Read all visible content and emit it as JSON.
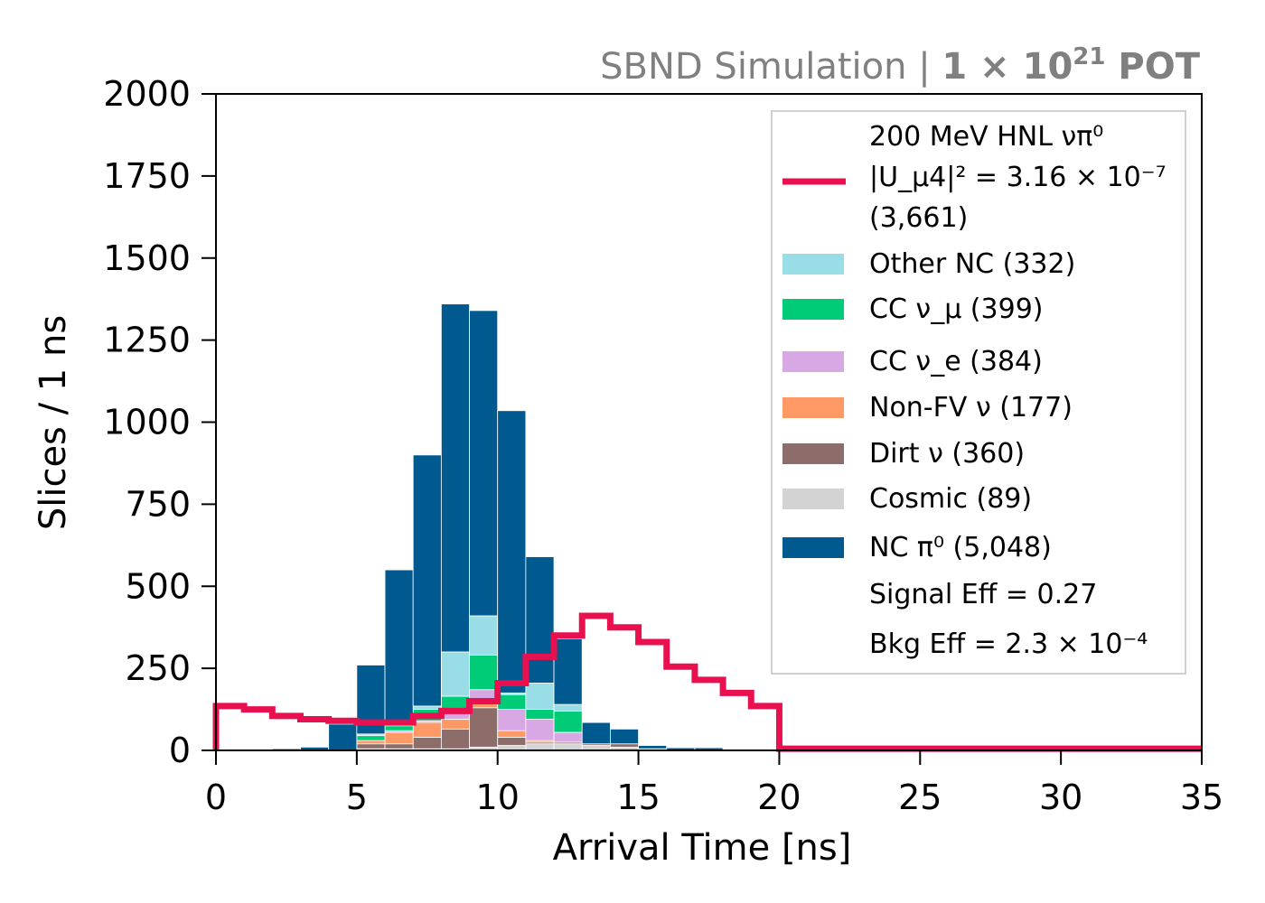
{
  "header": {
    "prefix": "SBND Simulation | ",
    "exposure": "1 × 10",
    "exponent": "21",
    "unit": " POT"
  },
  "chart_data": {
    "type": "bar",
    "stacked": true,
    "xlabel": "Arrival Time [ns]",
    "ylabel": "Slices / 1 ns",
    "xlim": [
      0,
      35
    ],
    "ylim": [
      0,
      2000
    ],
    "xticks": [
      "0",
      "5",
      "10",
      "15",
      "20",
      "25",
      "30",
      "35"
    ],
    "yticks": [
      "0",
      "250",
      "500",
      "750",
      "1000",
      "1250",
      "1500",
      "1750",
      "2000"
    ],
    "bin_edges": [
      0,
      1,
      2,
      3,
      4,
      5,
      6,
      7,
      8,
      9,
      10,
      11,
      12,
      13,
      14,
      15,
      16,
      17,
      18,
      19,
      20,
      21,
      22,
      23,
      24,
      25,
      26,
      27,
      28,
      29,
      30,
      31,
      32,
      33,
      34,
      35
    ],
    "stack_order": [
      "Cosmic",
      "Dirt ν",
      "Non-FV ν",
      "CC ν_e",
      "CC ν_μ",
      "Other NC",
      "NC π⁰"
    ],
    "series": [
      {
        "name": "Cosmic",
        "color": "#d3d3d3",
        "values": [
          0,
          0,
          0,
          0,
          0,
          5,
          5,
          5,
          5,
          10,
          15,
          20,
          20,
          15,
          10,
          5,
          0,
          0,
          0,
          0,
          0,
          0,
          0,
          0,
          0,
          0,
          0,
          0,
          0,
          0,
          0,
          0,
          0,
          0,
          0
        ]
      },
      {
        "name": "Dirt ν",
        "color": "#8c6d6a",
        "values": [
          0,
          0,
          0,
          0,
          0,
          15,
          15,
          35,
          60,
          120,
          25,
          5,
          5,
          5,
          10,
          0,
          0,
          0,
          0,
          0,
          0,
          0,
          0,
          0,
          0,
          0,
          0,
          0,
          0,
          0,
          0,
          0,
          0,
          0,
          0
        ]
      },
      {
        "name": "Non-FV ν",
        "color": "#ff9966",
        "values": [
          0,
          0,
          0,
          0,
          0,
          10,
          35,
          45,
          30,
          25,
          20,
          5,
          0,
          0,
          0,
          0,
          0,
          0,
          0,
          0,
          0,
          0,
          0,
          0,
          0,
          0,
          0,
          0,
          0,
          0,
          0,
          0,
          0,
          0,
          0
        ]
      },
      {
        "name": "CC ν_e",
        "color": "#d8a8e4",
        "values": [
          0,
          0,
          0,
          0,
          0,
          0,
          5,
          5,
          30,
          30,
          65,
          65,
          30,
          0,
          0,
          0,
          0,
          0,
          0,
          0,
          0,
          0,
          0,
          0,
          0,
          0,
          0,
          0,
          0,
          0,
          0,
          0,
          0,
          0,
          0
        ]
      },
      {
        "name": "CC ν_μ",
        "color": "#00cc77",
        "values": [
          0,
          0,
          0,
          0,
          0,
          15,
          15,
          35,
          40,
          105,
          45,
          30,
          65,
          0,
          0,
          0,
          0,
          0,
          0,
          0,
          0,
          0,
          0,
          0,
          0,
          0,
          0,
          0,
          0,
          0,
          0,
          0,
          0,
          0,
          0
        ]
      },
      {
        "name": "Other NC",
        "color": "#99dde6",
        "values": [
          0,
          0,
          0,
          0,
          0,
          5,
          5,
          10,
          135,
          120,
          5,
          80,
          20,
          0,
          0,
          0,
          0,
          0,
          0,
          0,
          0,
          0,
          0,
          0,
          0,
          0,
          0,
          0,
          0,
          0,
          0,
          0,
          0,
          0,
          0
        ]
      },
      {
        "name": "NC π⁰",
        "color": "#005a8f",
        "values": [
          0,
          0,
          5,
          10,
          80,
          210,
          470,
          765,
          1060,
          930,
          860,
          385,
          200,
          65,
          45,
          10,
          8,
          8,
          0,
          0,
          0,
          0,
          0,
          0,
          0,
          0,
          0,
          0,
          0,
          0,
          0,
          0,
          0,
          0,
          0
        ]
      }
    ],
    "signal": {
      "name": "200 MeV HNL νπ⁰",
      "color": "#e8104f",
      "values": [
        135,
        125,
        105,
        95,
        90,
        85,
        85,
        105,
        120,
        150,
        205,
        285,
        350,
        410,
        375,
        330,
        255,
        215,
        175,
        135,
        5,
        5,
        5,
        5,
        5,
        5,
        5,
        5,
        5,
        5,
        5,
        5,
        5,
        5,
        5
      ]
    },
    "legend": {
      "placement": "upper-right",
      "signal_lines": [
        "200 MeV HNL νπ⁰",
        "|U_μ4|² = 3.16 × 10⁻⁷",
        "(3,661)"
      ],
      "entries": [
        {
          "label": "Other NC (332)",
          "color": "#99dde6"
        },
        {
          "label": "CC ν_μ (399)",
          "color": "#00cc77"
        },
        {
          "label": "CC ν_e (384)",
          "color": "#d8a8e4"
        },
        {
          "label": "Non-FV ν (177)",
          "color": "#ff9966"
        },
        {
          "label": "Dirt ν (360)",
          "color": "#8c6d6a"
        },
        {
          "label": "Cosmic (89)",
          "color": "#d3d3d3"
        },
        {
          "label": "NC π⁰ (5,048)",
          "color": "#005a8f"
        }
      ],
      "notes": [
        "Signal Eff = 0.27",
        "Bkg Eff = 2.3 × 10⁻⁴"
      ]
    }
  }
}
